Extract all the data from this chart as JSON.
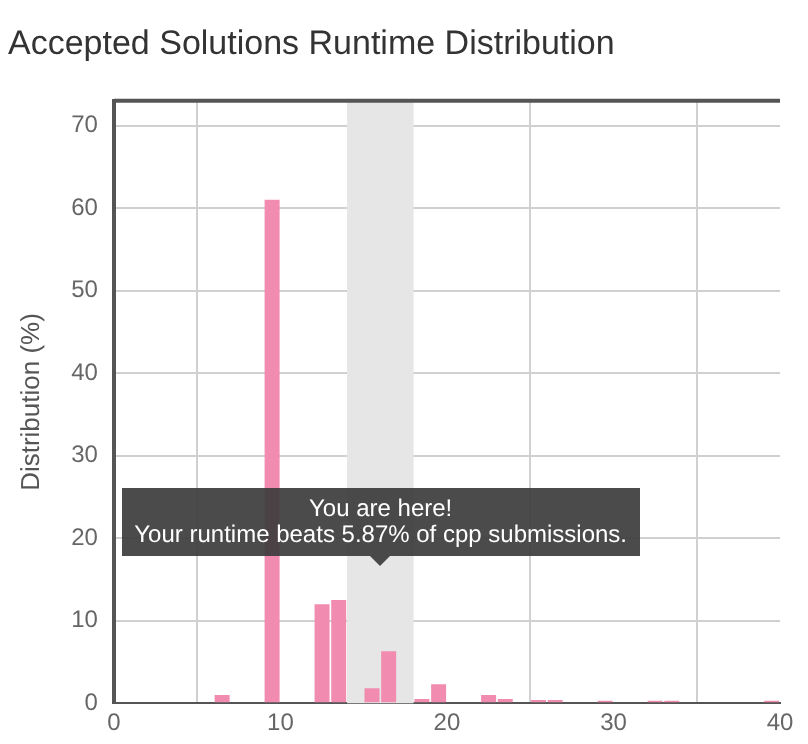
{
  "chart_data": {
    "type": "histogram",
    "title": "Accepted Solutions Runtime Distribution",
    "ylabel": "Distribution (%)",
    "bins": [
      6,
      7,
      8,
      9,
      10,
      11,
      12,
      13,
      14,
      15,
      16,
      17,
      18,
      19,
      20,
      21,
      22,
      23,
      24,
      25,
      26,
      27,
      28,
      29,
      30,
      31,
      32,
      33,
      34,
      35,
      36,
      37,
      38,
      39,
      40
    ],
    "values": [
      1,
      0,
      0,
      61,
      0,
      0,
      12,
      12.5,
      0,
      1.8,
      6.3,
      0,
      0.5,
      2.3,
      0,
      0,
      1,
      0.5,
      0,
      0.4,
      0.4,
      0,
      0,
      0.3,
      0,
      0,
      0.3,
      0.3,
      0,
      0,
      0,
      0,
      0,
      0.3
    ],
    "color": "#f28bb0",
    "xlim": [
      0,
      40
    ],
    "xticks": [
      0,
      10,
      20,
      30,
      40
    ],
    "ylim": [
      0,
      73
    ],
    "yticks": [
      0,
      10,
      20,
      30,
      40,
      50,
      60,
      70
    ],
    "grid": true,
    "bands": [
      {
        "axis": "x",
        "from": 14,
        "to": 18,
        "color": "#e6e6e6"
      }
    ],
    "annotations": [
      "You are here!",
      "Your runtime beats 5.87% of cpp submissions."
    ]
  }
}
